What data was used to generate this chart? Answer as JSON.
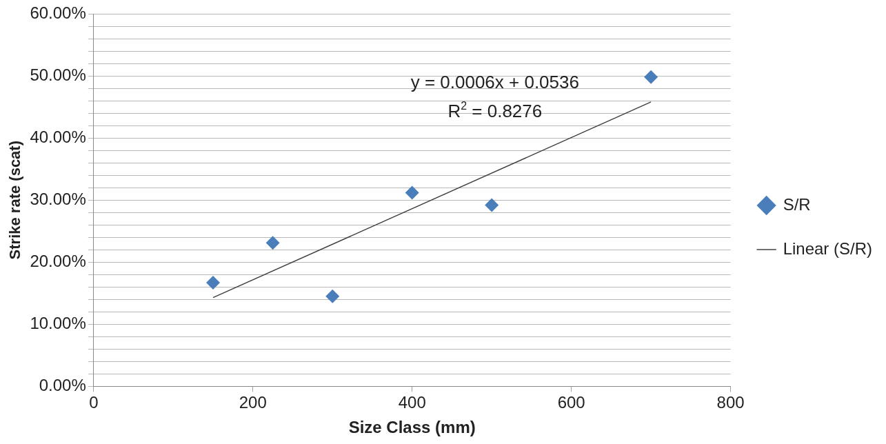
{
  "chart_data": {
    "type": "scatter",
    "xlabel": "Size Class (mm)",
    "ylabel": "Strike rate (scat)",
    "x": [
      150,
      225,
      300,
      400,
      500,
      700
    ],
    "series": [
      {
        "name": "S/R",
        "type": "scatter",
        "color": "#4a7ebb",
        "marker": "diamond",
        "values": [
          0.167,
          0.231,
          0.145,
          0.312,
          0.292,
          0.498
        ]
      },
      {
        "name": "Linear (S/R)",
        "type": "line",
        "color": "#404040",
        "marker": "none",
        "line_style": "solid",
        "x": [
          150,
          700
        ],
        "values": [
          0.143,
          0.458
        ]
      }
    ],
    "annotations": [
      "y = 0.0006x + 0.0536",
      "R$^{2}$ = 0.8276"
    ],
    "xlim": [
      0,
      800
    ],
    "xticks": [
      0,
      200,
      400,
      600,
      800
    ],
    "ylim": [
      0,
      0.6
    ],
    "yticks": [
      {
        "value": 0,
        "label": "0.00%"
      },
      {
        "value": 0.02,
        "label": null
      },
      {
        "value": 0.04,
        "label": null
      },
      {
        "value": 0.06,
        "label": null
      },
      {
        "value": 0.08,
        "label": null
      },
      {
        "value": 0.1,
        "label": "10.00%"
      },
      {
        "value": 0.12,
        "label": null
      },
      {
        "value": 0.14,
        "label": null
      },
      {
        "value": 0.16,
        "label": null
      },
      {
        "value": 0.18,
        "label": null
      },
      {
        "value": 0.2,
        "label": "20.00%"
      },
      {
        "value": 0.22,
        "label": null
      },
      {
        "value": 0.24,
        "label": null
      },
      {
        "value": 0.26,
        "label": null
      },
      {
        "value": 0.28,
        "label": null
      },
      {
        "value": 0.3,
        "label": "30.00%"
      },
      {
        "value": 0.32,
        "label": null
      },
      {
        "value": 0.34,
        "label": null
      },
      {
        "value": 0.36,
        "label": null
      },
      {
        "value": 0.38,
        "label": null
      },
      {
        "value": 0.4,
        "label": "40.00%"
      },
      {
        "value": 0.42,
        "label": null
      },
      {
        "value": 0.44,
        "label": null
      },
      {
        "value": 0.46,
        "label": null
      },
      {
        "value": 0.48,
        "label": null
      },
      {
        "value": 0.5,
        "label": "50.00%"
      },
      {
        "value": 0.52,
        "label": null
      },
      {
        "value": 0.54,
        "label": null
      },
      {
        "value": 0.56,
        "label": null
      },
      {
        "value": 0.58,
        "label": null
      },
      {
        "value": 0.6,
        "label": "60.00%"
      }
    ],
    "grid": "y",
    "legend": "right"
  }
}
